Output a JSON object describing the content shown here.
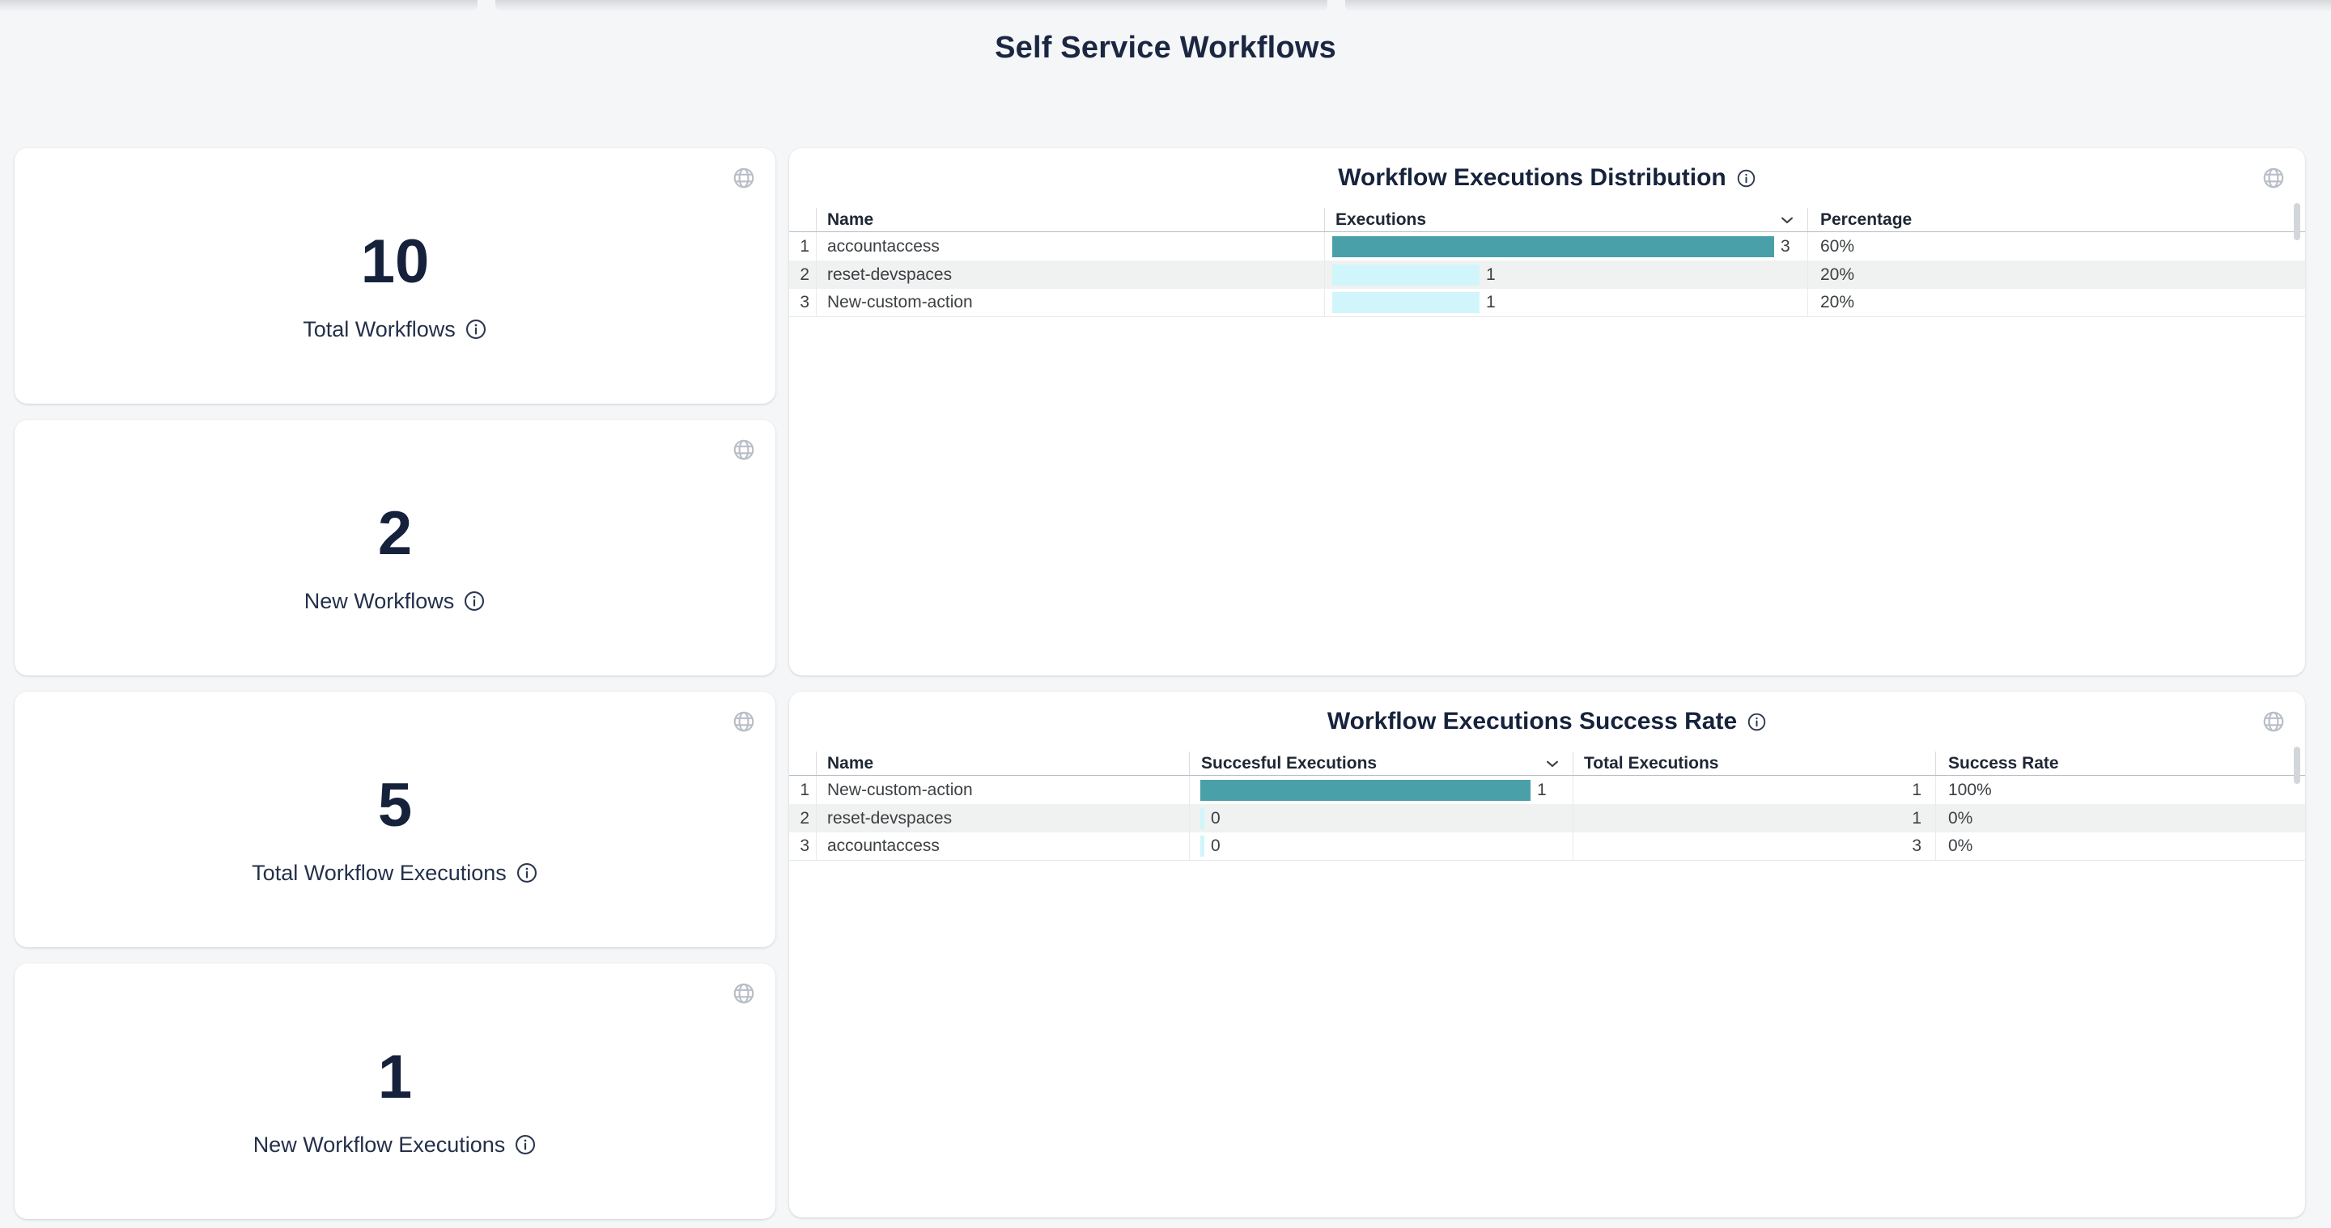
{
  "page": {
    "title": "Self Service Workflows"
  },
  "stat_cards": [
    {
      "value": "10",
      "label": "Total Workflows"
    },
    {
      "value": "2",
      "label": "New Workflows"
    },
    {
      "value": "5",
      "label": "Total Workflow Executions"
    },
    {
      "value": "1",
      "label": "New Workflow Executions"
    }
  ],
  "distribution_table": {
    "title": "Workflow Executions Distribution",
    "columns": {
      "name": "Name",
      "executions": "Executions",
      "percentage": "Percentage"
    },
    "sorted_by": "Executions",
    "rows": [
      {
        "index": "1",
        "name": "accountaccess",
        "executions": 3,
        "percentage": "60%"
      },
      {
        "index": "2",
        "name": "reset-devspaces",
        "executions": 1,
        "percentage": "20%"
      },
      {
        "index": "3",
        "name": "New-custom-action",
        "executions": 1,
        "percentage": "20%"
      }
    ]
  },
  "success_table": {
    "title": "Workflow Executions Success Rate",
    "columns": {
      "name": "Name",
      "successful": "Succesful Executions",
      "total": "Total Executions",
      "rate": "Success Rate"
    },
    "sorted_by": "Succesful Executions",
    "rows": [
      {
        "index": "1",
        "name": "New-custom-action",
        "successful": 1,
        "total": "1",
        "rate": "100%"
      },
      {
        "index": "2",
        "name": "reset-devspaces",
        "successful": 0,
        "total": "1",
        "rate": "0%"
      },
      {
        "index": "3",
        "name": "accountaccess",
        "successful": 0,
        "total": "3",
        "rate": "0%"
      }
    ]
  },
  "colors": {
    "accent_bar": "#4AA0A8",
    "light_bar": "#D0F6FB",
    "row_stripe": "#F0F1F1",
    "heading_text": "#1B2742",
    "page_bg": "#F4F6F8"
  },
  "icons": {
    "card_corner": "globe-icon",
    "label_suffix": "info-icon",
    "sort_indicator": "chevron-down-icon"
  }
}
